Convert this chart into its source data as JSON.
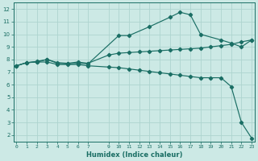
{
  "xlabel": "Humidex (Indice chaleur)",
  "background_color": "#cce9e5",
  "grid_color": "#aed4cf",
  "line_color": "#1a6e64",
  "line1_x": [
    0,
    1,
    2,
    3,
    4,
    5,
    6,
    7,
    10,
    11,
    13,
    15,
    16,
    17,
    18,
    20,
    21,
    22,
    23
  ],
  "line1_y": [
    7.5,
    7.75,
    7.8,
    8.0,
    7.7,
    7.65,
    7.7,
    7.65,
    9.9,
    9.9,
    10.6,
    11.35,
    11.75,
    11.55,
    10.0,
    9.55,
    9.3,
    9.0,
    9.55
  ],
  "line2_x": [
    0,
    1,
    2,
    3,
    4,
    5,
    6,
    7,
    9,
    10,
    11,
    12,
    13,
    14,
    15,
    16,
    17,
    18,
    19,
    20,
    21,
    22,
    23
  ],
  "line2_y": [
    7.5,
    7.75,
    7.85,
    8.0,
    7.75,
    7.7,
    7.8,
    7.7,
    8.35,
    8.5,
    8.55,
    8.6,
    8.65,
    8.7,
    8.75,
    8.8,
    8.85,
    8.9,
    9.0,
    9.1,
    9.2,
    9.4,
    9.55
  ],
  "line3_x": [
    0,
    1,
    2,
    3,
    4,
    5,
    6,
    7,
    9,
    10,
    11,
    12,
    13,
    14,
    15,
    16,
    17,
    18,
    19,
    20,
    21,
    22,
    23
  ],
  "line3_y": [
    7.5,
    7.75,
    7.8,
    7.8,
    7.6,
    7.6,
    7.6,
    7.5,
    7.4,
    7.35,
    7.25,
    7.15,
    7.05,
    6.95,
    6.85,
    6.75,
    6.65,
    6.55,
    6.55,
    6.55,
    5.85,
    3.0,
    1.75
  ],
  "ylim": [
    1.5,
    12.5
  ],
  "xlim": [
    -0.3,
    23.3
  ],
  "yticks": [
    2,
    3,
    4,
    5,
    6,
    7,
    8,
    9,
    10,
    11,
    12
  ],
  "xticks": [
    0,
    1,
    2,
    3,
    4,
    5,
    6,
    7,
    9,
    10,
    11,
    12,
    13,
    14,
    15,
    16,
    17,
    18,
    19,
    20,
    21,
    22,
    23
  ],
  "xtick_labels": [
    "0",
    "1",
    "2",
    "3",
    "4",
    "5",
    "6",
    "7",
    "9",
    "10",
    "11",
    "12",
    "13",
    "14",
    "15",
    "16",
    "17",
    "18",
    "19",
    "20",
    "21",
    "22",
    "23"
  ]
}
